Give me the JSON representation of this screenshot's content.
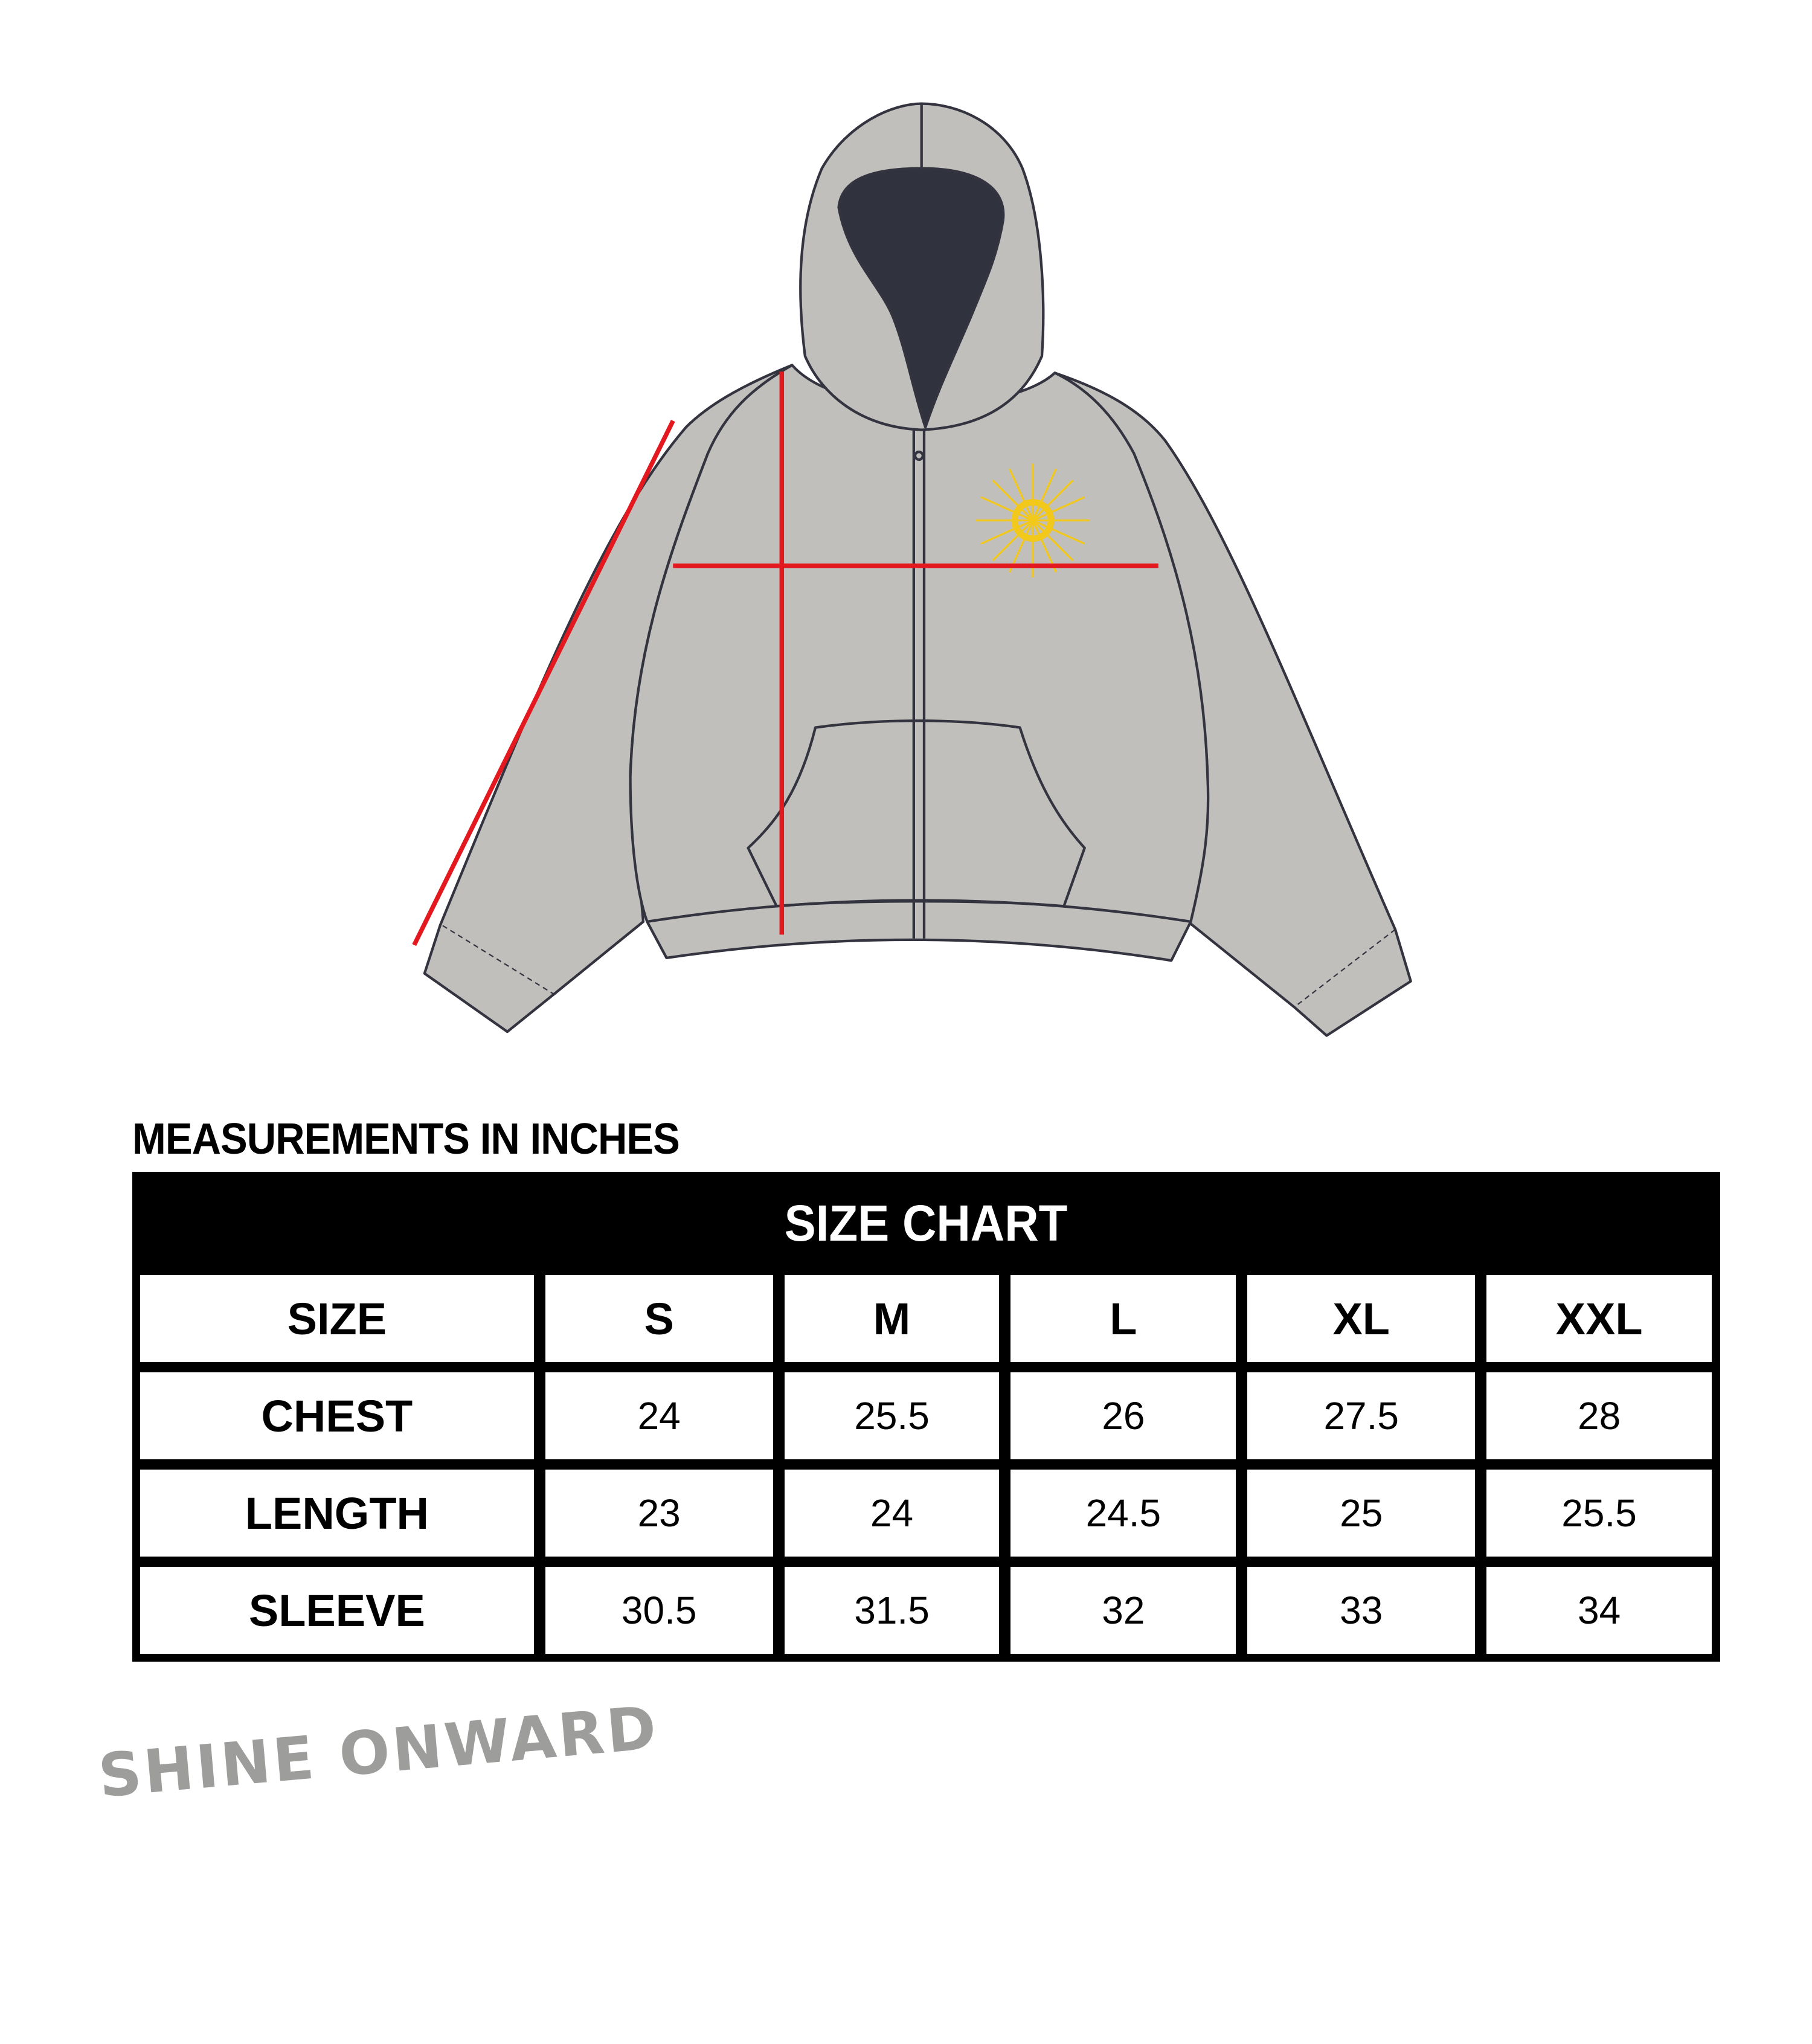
{
  "measurements_label": "MEASUREMENTS IN INCHES",
  "table": {
    "title": "SIZE CHART",
    "columns": [
      "SIZE",
      "S",
      "M",
      "L",
      "XL",
      "XXL"
    ],
    "rows": [
      {
        "label": "CHEST",
        "values": [
          "24",
          "25.5",
          "26",
          "27.5",
          "28"
        ]
      },
      {
        "label": "LENGTH",
        "values": [
          "23",
          "24",
          "24.5",
          "25",
          "25.5"
        ]
      },
      {
        "label": "SLEEVE",
        "values": [
          "30.5",
          "31.5",
          "32",
          "33",
          "34"
        ]
      }
    ]
  },
  "brand_logo": "SHINE ONWARD",
  "colors": {
    "garment": "#c0bfbb",
    "outline": "#33343f",
    "hood_lining": "#30323e",
    "measure_lines": "#e3191f",
    "emblem": "#f2c81a",
    "logo": "#9d9d9b"
  }
}
